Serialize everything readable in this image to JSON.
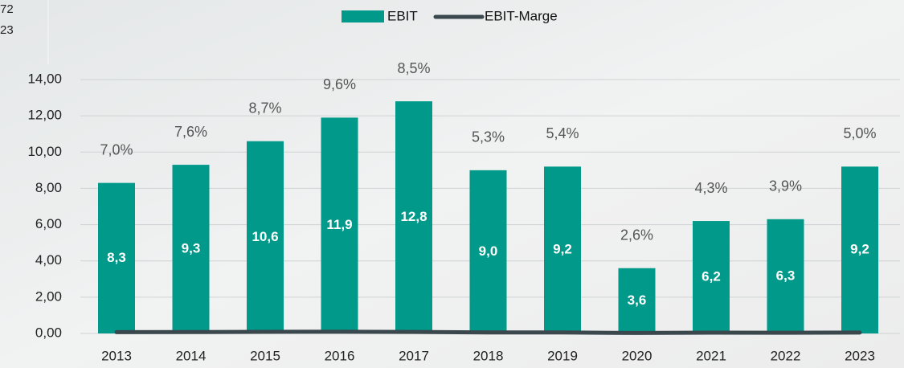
{
  "fragments": [
    "72",
    "23"
  ],
  "chart_data": {
    "type": "bar",
    "categories": [
      "2013",
      "2014",
      "2015",
      "2016",
      "2017",
      "2018",
      "2019",
      "2020",
      "2021",
      "2022",
      "2023"
    ],
    "series": [
      {
        "name": "EBIT",
        "color": "#00998a",
        "values": [
          8.3,
          9.3,
          10.6,
          11.9,
          12.8,
          9.0,
          9.2,
          3.6,
          6.2,
          6.3,
          9.2
        ],
        "value_labels": [
          "8,3",
          "9,3",
          "10,6",
          "11,9",
          "12,8",
          "9,0",
          "9,2",
          "3,6",
          "6,2",
          "6,3",
          "9,2"
        ]
      },
      {
        "name": "EBIT-Marge",
        "type": "line",
        "color": "#3a474c",
        "values": [
          0.07,
          0.076,
          0.087,
          0.096,
          0.085,
          0.053,
          0.054,
          0.026,
          0.043,
          0.039,
          0.05
        ],
        "value_labels": [
          "7,0%",
          "7,6%",
          "8,7%",
          "9,6%",
          "8,5%",
          "5,3%",
          "5,4%",
          "2,6%",
          "4,3%",
          "3,9%",
          "5,0%"
        ]
      }
    ],
    "ylim": [
      0,
      14
    ],
    "yticks": [
      {
        "value": 0,
        "label": "0,00"
      },
      {
        "value": 2,
        "label": "2,00"
      },
      {
        "value": 4,
        "label": "4,00"
      },
      {
        "value": 6,
        "label": "6,00"
      },
      {
        "value": 8,
        "label": "8,00"
      },
      {
        "value": 10,
        "label": "10,00"
      },
      {
        "value": 12,
        "label": "12,00"
      },
      {
        "value": 14,
        "label": "14,00"
      }
    ],
    "grid": true
  }
}
